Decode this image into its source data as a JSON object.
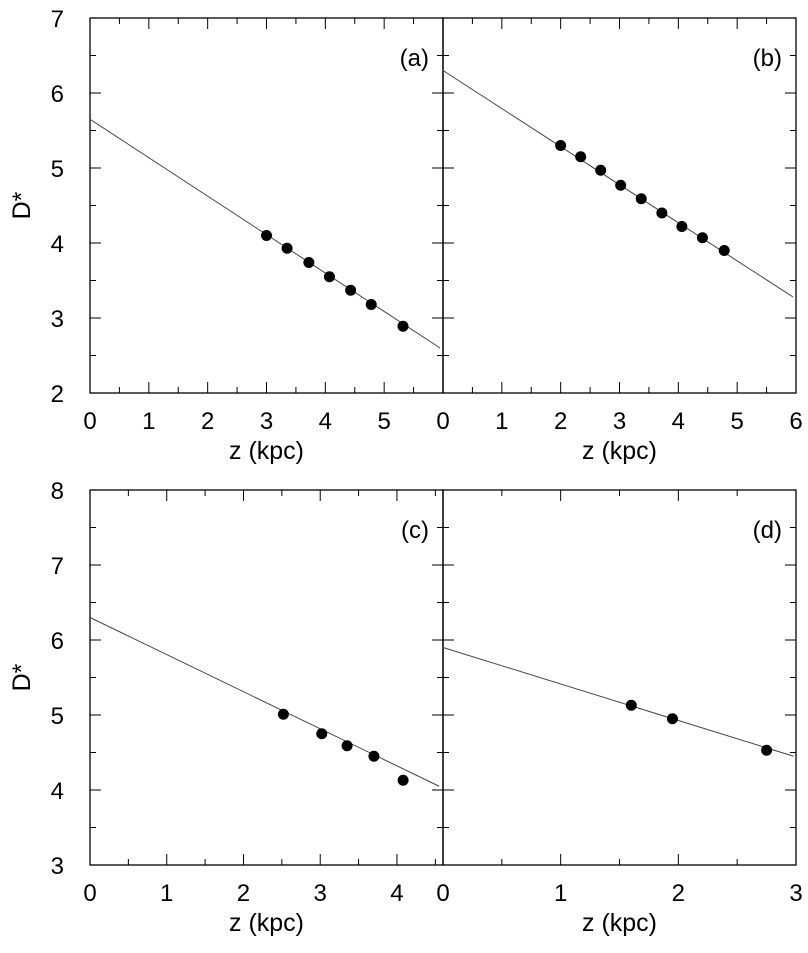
{
  "chart_data": [
    {
      "type": "scatter",
      "panel_label": "(a)",
      "xlabel": "z (kpc)",
      "ylabel": "D*",
      "xlim": [
        0,
        6
      ],
      "ylim": [
        2,
        7
      ],
      "x_ticks": [
        "0",
        "1",
        "2",
        "3",
        "4",
        "5"
      ],
      "y_ticks": [
        "2",
        "3",
        "4",
        "5",
        "6",
        "7"
      ],
      "points": {
        "x": [
          3.0,
          3.35,
          3.72,
          4.07,
          4.43,
          4.78,
          5.32
        ],
        "y": [
          4.1,
          3.93,
          3.74,
          3.55,
          3.37,
          3.18,
          2.89
        ]
      },
      "fit_line": {
        "x": [
          0,
          5.95
        ],
        "y": [
          5.65,
          2.6
        ]
      }
    },
    {
      "type": "scatter",
      "panel_label": "(b)",
      "xlabel": "z (kpc)",
      "ylabel": "",
      "xlim": [
        0,
        6
      ],
      "ylim": [
        2,
        7
      ],
      "x_ticks": [
        "0",
        "1",
        "2",
        "3",
        "4",
        "5",
        "6"
      ],
      "y_ticks": [],
      "points": {
        "x": [
          2.0,
          2.34,
          2.68,
          3.02,
          3.37,
          3.72,
          4.06,
          4.41,
          4.78
        ],
        "y": [
          5.3,
          5.15,
          4.97,
          4.77,
          4.59,
          4.4,
          4.22,
          4.07,
          3.9
        ]
      },
      "fit_line": {
        "x": [
          0,
          5.95
        ],
        "y": [
          6.3,
          3.28
        ]
      }
    },
    {
      "type": "scatter",
      "panel_label": "(c)",
      "xlabel": "z (kpc)",
      "ylabel": "D*",
      "xlim": [
        0,
        4.6
      ],
      "ylim": [
        3,
        8
      ],
      "x_ticks": [
        "0",
        "1",
        "2",
        "3",
        "4"
      ],
      "y_ticks": [
        "3",
        "4",
        "5",
        "6",
        "7",
        "8"
      ],
      "points": {
        "x": [
          2.52,
          3.02,
          3.35,
          3.7,
          4.08
        ],
        "y": [
          5.01,
          4.75,
          4.59,
          4.45,
          4.13
        ]
      },
      "fit_line": {
        "x": [
          0,
          4.55
        ],
        "y": [
          6.3,
          4.05
        ]
      }
    },
    {
      "type": "scatter",
      "panel_label": "(d)",
      "xlabel": "z (kpc)",
      "ylabel": "",
      "xlim": [
        0,
        3
      ],
      "ylim": [
        3,
        8
      ],
      "x_ticks": [
        "0",
        "1",
        "2",
        "3"
      ],
      "y_ticks": [],
      "points": {
        "x": [
          1.6,
          1.95,
          2.75
        ],
        "y": [
          5.13,
          4.95,
          4.53
        ]
      },
      "fit_line": {
        "x": [
          0,
          2.98
        ],
        "y": [
          5.9,
          4.45
        ]
      }
    }
  ]
}
